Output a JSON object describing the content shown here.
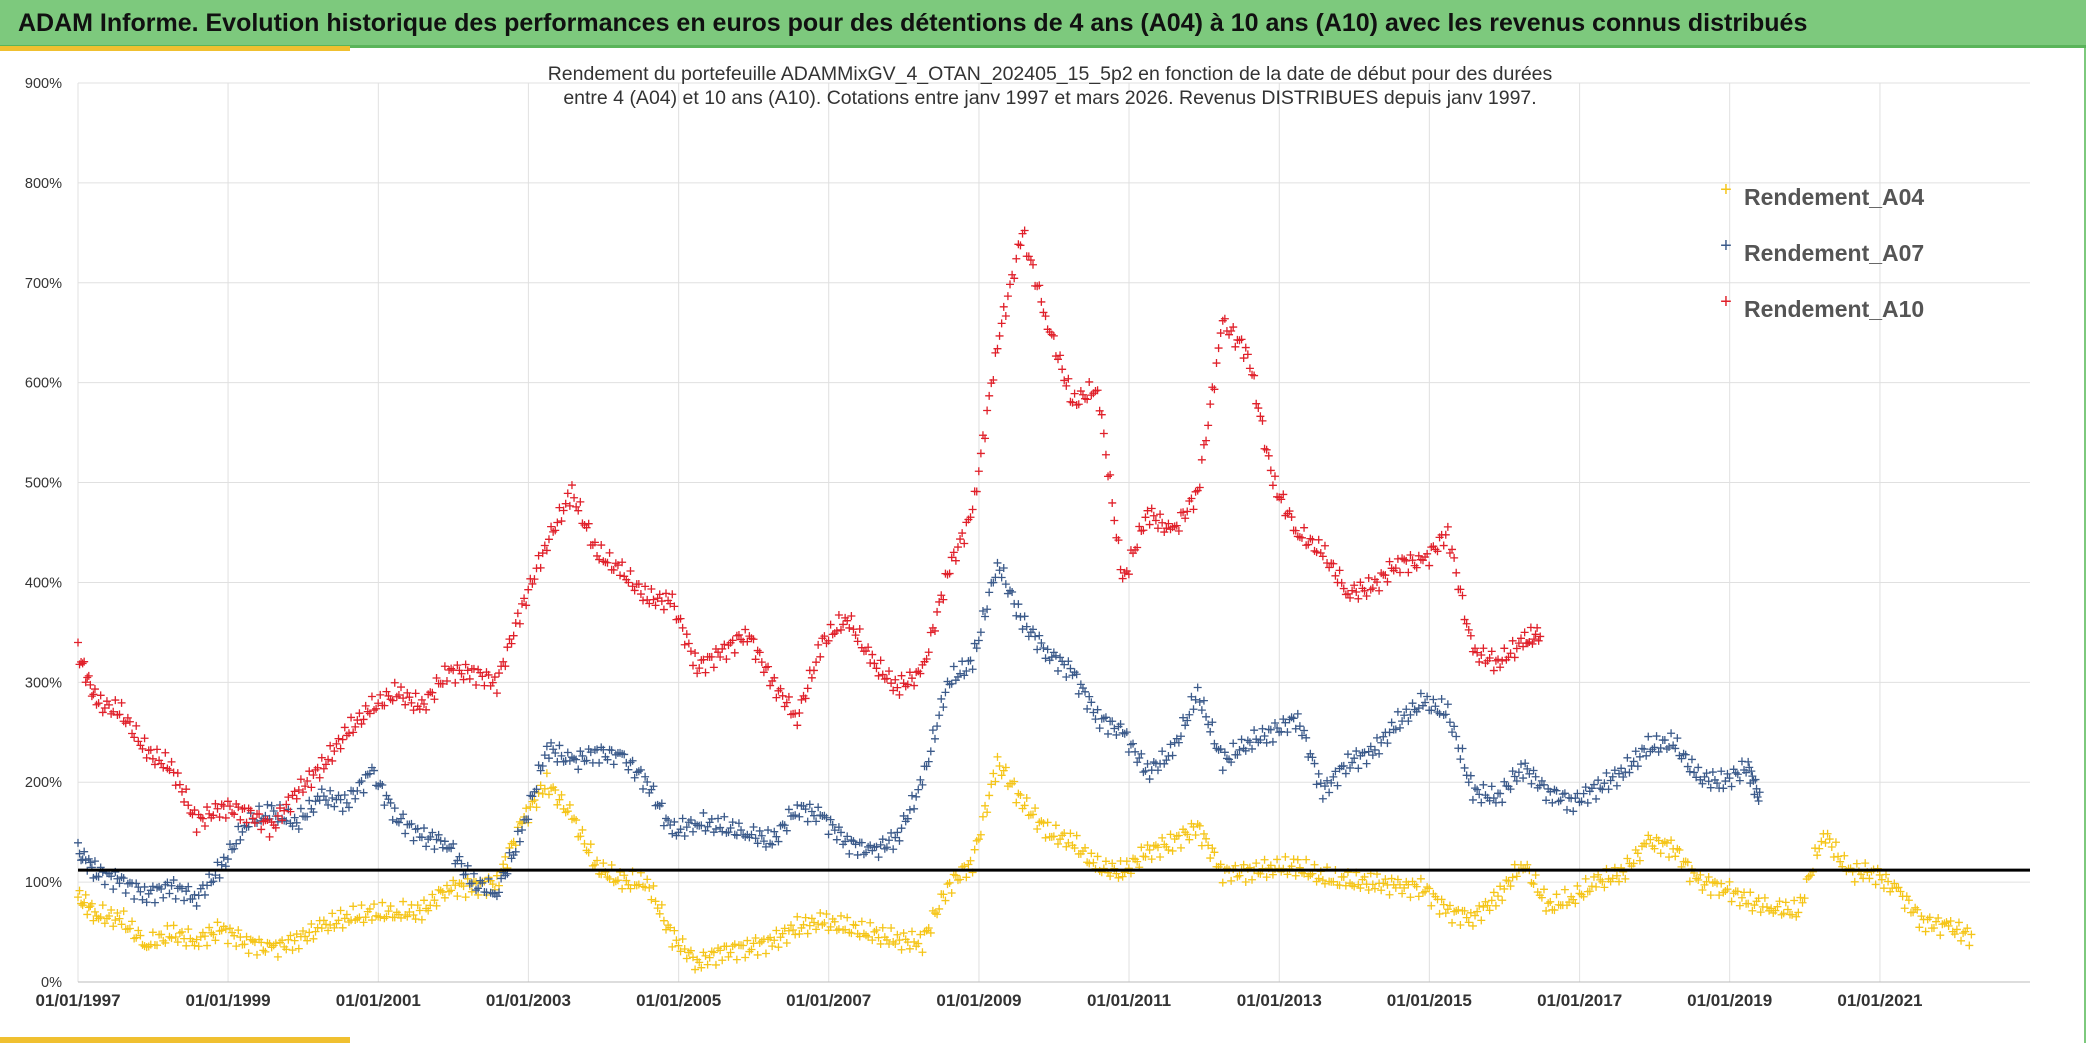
{
  "banner": {
    "title": "ADAM Informe. Evolution historique des performances en euros pour des détentions de 4 ans (A04) à 10 ans (A10) avec les revenus connus distribués"
  },
  "colors": {
    "banner_bg": "#7dc97d",
    "accent": "#f0c030",
    "A04": "#f5c518",
    "A07": "#3b5a8a",
    "A10": "#e0202a",
    "reference_line": "#000000"
  },
  "chart_data": {
    "type": "scatter",
    "title_lines": [
      "Rendement du portefeuille ADAMMixGV_4_OTAN_202405_15_5p2  en fonction de la date de début pour des durées",
      "entre 4 (A04) et 10 ans (A10). Cotations entre janv 1997 et mars 2026. Revenus DISTRIBUES depuis janv 1997."
    ],
    "x_axis": {
      "type": "date",
      "range": [
        "1997-01-01",
        "2023-01-01"
      ],
      "tick_labels": [
        "01/01/1997",
        "01/01/1999",
        "01/01/2001",
        "01/01/2003",
        "01/01/2005",
        "01/01/2007",
        "01/01/2009",
        "01/01/2011",
        "01/01/2013",
        "01/01/2015",
        "01/01/2017",
        "01/01/2019",
        "01/01/2021"
      ]
    },
    "y_axis": {
      "range": [
        0,
        900
      ],
      "unit": "%",
      "tick_labels": [
        "0%",
        "100%",
        "200%",
        "300%",
        "400%",
        "500%",
        "600%",
        "700%",
        "800%",
        "900%"
      ]
    },
    "grid": true,
    "legend_position": "top-right",
    "marker": "+",
    "reference_line": {
      "y": 112
    },
    "series": [
      {
        "name": "Rendement_A04",
        "color": "#f5c518",
        "points": [
          [
            "1997-01-01",
            85
          ],
          [
            "1997-04-01",
            68
          ],
          [
            "1997-08-01",
            62
          ],
          [
            "1997-12-01",
            38
          ],
          [
            "1998-04-01",
            48
          ],
          [
            "1998-08-01",
            42
          ],
          [
            "1998-12-01",
            52
          ],
          [
            "1999-04-01",
            40
          ],
          [
            "1999-08-01",
            33
          ],
          [
            "1999-12-01",
            42
          ],
          [
            "2000-04-01",
            55
          ],
          [
            "2000-08-01",
            65
          ],
          [
            "2000-12-01",
            68
          ],
          [
            "2001-04-01",
            70
          ],
          [
            "2001-08-01",
            70
          ],
          [
            "2001-12-01",
            95
          ],
          [
            "2002-04-01",
            95
          ],
          [
            "2002-08-01",
            100
          ],
          [
            "2002-12-01",
            160
          ],
          [
            "2003-04-01",
            200
          ],
          [
            "2003-08-01",
            165
          ],
          [
            "2003-12-01",
            115
          ],
          [
            "2004-04-01",
            100
          ],
          [
            "2004-08-01",
            100
          ],
          [
            "2004-12-01",
            45
          ],
          [
            "2005-04-01",
            20
          ],
          [
            "2005-08-01",
            30
          ],
          [
            "2005-12-01",
            35
          ],
          [
            "2006-04-01",
            40
          ],
          [
            "2006-08-01",
            55
          ],
          [
            "2006-12-01",
            60
          ],
          [
            "2007-04-01",
            55
          ],
          [
            "2007-08-01",
            48
          ],
          [
            "2007-12-01",
            42
          ],
          [
            "2008-04-01",
            40
          ],
          [
            "2008-08-01",
            95
          ],
          [
            "2008-12-01",
            120
          ],
          [
            "2009-04-01",
            220
          ],
          [
            "2009-08-01",
            180
          ],
          [
            "2009-12-01",
            150
          ],
          [
            "2010-04-01",
            140
          ],
          [
            "2010-08-01",
            115
          ],
          [
            "2010-12-01",
            110
          ],
          [
            "2011-04-01",
            130
          ],
          [
            "2011-08-01",
            140
          ],
          [
            "2011-12-01",
            155
          ],
          [
            "2012-04-01",
            110
          ],
          [
            "2012-08-01",
            110
          ],
          [
            "2012-12-01",
            115
          ],
          [
            "2013-04-01",
            115
          ],
          [
            "2013-08-01",
            105
          ],
          [
            "2013-12-01",
            100
          ],
          [
            "2014-04-01",
            100
          ],
          [
            "2014-08-01",
            95
          ],
          [
            "2014-12-01",
            95
          ],
          [
            "2015-04-01",
            70
          ],
          [
            "2015-08-01",
            65
          ],
          [
            "2015-12-01",
            85
          ],
          [
            "2016-04-01",
            120
          ],
          [
            "2016-08-01",
            75
          ],
          [
            "2016-12-01",
            85
          ],
          [
            "2017-04-01",
            100
          ],
          [
            "2017-08-01",
            110
          ],
          [
            "2017-12-01",
            140
          ],
          [
            "2018-04-01",
            135
          ],
          [
            "2018-08-01",
            100
          ],
          [
            "2018-12-01",
            95
          ],
          [
            "2019-04-01",
            80
          ],
          [
            "2019-08-01",
            75
          ],
          [
            "2019-12-01",
            70
          ],
          [
            "2020-04-01",
            150
          ],
          [
            "2020-08-01",
            110
          ],
          [
            "2020-12-01",
            110
          ],
          [
            "2021-04-01",
            90
          ],
          [
            "2021-08-01",
            60
          ],
          [
            "2021-12-01",
            55
          ],
          [
            "2022-04-01",
            45
          ]
        ]
      },
      {
        "name": "Rendement_A07",
        "color": "#3b5a8a",
        "points": [
          [
            "1997-01-01",
            130
          ],
          [
            "1997-04-01",
            110
          ],
          [
            "1997-08-01",
            100
          ],
          [
            "1997-12-01",
            88
          ],
          [
            "1998-04-01",
            95
          ],
          [
            "1998-08-01",
            85
          ],
          [
            "1998-12-01",
            115
          ],
          [
            "1999-04-01",
            160
          ],
          [
            "1999-08-01",
            170
          ],
          [
            "1999-12-01",
            160
          ],
          [
            "2000-04-01",
            185
          ],
          [
            "2000-08-01",
            180
          ],
          [
            "2000-12-01",
            210
          ],
          [
            "2001-04-01",
            165
          ],
          [
            "2001-08-01",
            145
          ],
          [
            "2001-12-01",
            140
          ],
          [
            "2002-04-01",
            100
          ],
          [
            "2002-08-01",
            90
          ],
          [
            "2002-12-01",
            150
          ],
          [
            "2003-04-01",
            235
          ],
          [
            "2003-08-01",
            220
          ],
          [
            "2003-12-01",
            230
          ],
          [
            "2004-04-01",
            225
          ],
          [
            "2004-08-01",
            200
          ],
          [
            "2004-12-01",
            150
          ],
          [
            "2005-04-01",
            160
          ],
          [
            "2005-08-01",
            155
          ],
          [
            "2005-12-01",
            150
          ],
          [
            "2006-04-01",
            140
          ],
          [
            "2006-08-01",
            175
          ],
          [
            "2006-12-01",
            165
          ],
          [
            "2007-04-01",
            140
          ],
          [
            "2007-08-01",
            130
          ],
          [
            "2007-12-01",
            145
          ],
          [
            "2008-04-01",
            200
          ],
          [
            "2008-08-01",
            300
          ],
          [
            "2008-12-01",
            320
          ],
          [
            "2009-04-01",
            420
          ],
          [
            "2009-08-01",
            360
          ],
          [
            "2009-12-01",
            330
          ],
          [
            "2010-04-01",
            310
          ],
          [
            "2010-08-01",
            265
          ],
          [
            "2010-12-01",
            250
          ],
          [
            "2011-04-01",
            210
          ],
          [
            "2011-08-01",
            230
          ],
          [
            "2011-12-01",
            290
          ],
          [
            "2012-04-01",
            220
          ],
          [
            "2012-08-01",
            240
          ],
          [
            "2012-12-01",
            250
          ],
          [
            "2013-04-01",
            265
          ],
          [
            "2013-08-01",
            190
          ],
          [
            "2013-12-01",
            220
          ],
          [
            "2014-04-01",
            230
          ],
          [
            "2014-08-01",
            260
          ],
          [
            "2014-12-01",
            280
          ],
          [
            "2015-04-01",
            270
          ],
          [
            "2015-08-01",
            190
          ],
          [
            "2015-12-01",
            185
          ],
          [
            "2016-04-01",
            215
          ],
          [
            "2016-08-01",
            190
          ],
          [
            "2016-12-01",
            180
          ],
          [
            "2017-04-01",
            195
          ],
          [
            "2017-08-01",
            210
          ],
          [
            "2017-12-01",
            235
          ],
          [
            "2018-04-01",
            240
          ],
          [
            "2018-08-01",
            205
          ],
          [
            "2018-12-01",
            200
          ],
          [
            "2019-04-01",
            215
          ],
          [
            "2019-06-01",
            180
          ]
        ]
      },
      {
        "name": "Rendement_A10",
        "color": "#e0202a",
        "points": [
          [
            "1997-01-01",
            330
          ],
          [
            "1997-04-01",
            280
          ],
          [
            "1997-08-01",
            270
          ],
          [
            "1997-12-01",
            230
          ],
          [
            "1998-04-01",
            215
          ],
          [
            "1998-08-01",
            160
          ],
          [
            "1998-12-01",
            175
          ],
          [
            "1999-04-01",
            170
          ],
          [
            "1999-08-01",
            155
          ],
          [
            "1999-12-01",
            190
          ],
          [
            "2000-04-01",
            215
          ],
          [
            "2000-08-01",
            250
          ],
          [
            "2000-12-01",
            275
          ],
          [
            "2001-04-01",
            290
          ],
          [
            "2001-08-01",
            275
          ],
          [
            "2001-12-01",
            310
          ],
          [
            "2002-04-01",
            310
          ],
          [
            "2002-08-01",
            300
          ],
          [
            "2002-12-01",
            375
          ],
          [
            "2003-04-01",
            440
          ],
          [
            "2003-08-01",
            490
          ],
          [
            "2003-12-01",
            430
          ],
          [
            "2004-04-01",
            410
          ],
          [
            "2004-08-01",
            385
          ],
          [
            "2004-12-01",
            380
          ],
          [
            "2005-04-01",
            315
          ],
          [
            "2005-08-01",
            330
          ],
          [
            "2005-12-01",
            350
          ],
          [
            "2006-04-01",
            300
          ],
          [
            "2006-08-01",
            265
          ],
          [
            "2006-12-01",
            340
          ],
          [
            "2007-04-01",
            365
          ],
          [
            "2007-08-01",
            320
          ],
          [
            "2007-12-01",
            295
          ],
          [
            "2008-04-01",
            310
          ],
          [
            "2008-08-01",
            410
          ],
          [
            "2008-12-01",
            470
          ],
          [
            "2009-04-01",
            640
          ],
          [
            "2009-08-01",
            750
          ],
          [
            "2009-12-01",
            660
          ],
          [
            "2010-04-01",
            580
          ],
          [
            "2010-08-01",
            595
          ],
          [
            "2010-12-01",
            400
          ],
          [
            "2011-04-01",
            470
          ],
          [
            "2011-08-01",
            450
          ],
          [
            "2011-12-01",
            490
          ],
          [
            "2012-04-01",
            660
          ],
          [
            "2012-08-01",
            630
          ],
          [
            "2012-12-01",
            500
          ],
          [
            "2013-04-01",
            450
          ],
          [
            "2013-08-01",
            430
          ],
          [
            "2013-12-01",
            390
          ],
          [
            "2014-04-01",
            395
          ],
          [
            "2014-08-01",
            420
          ],
          [
            "2014-12-01",
            420
          ],
          [
            "2015-04-01",
            450
          ],
          [
            "2015-08-01",
            330
          ],
          [
            "2015-12-01",
            320
          ],
          [
            "2016-04-01",
            340
          ],
          [
            "2016-07-01",
            350
          ]
        ]
      }
    ]
  }
}
